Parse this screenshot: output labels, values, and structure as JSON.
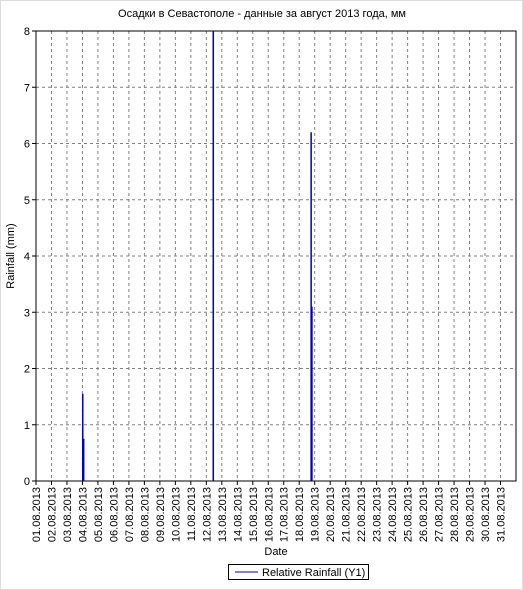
{
  "chart_data": {
    "type": "bar",
    "title": "Осадки в Севастополе - данные за август 2013 года, мм",
    "x_label": "Date",
    "y_label": "Rainfall (mm)",
    "xlim": [
      1,
      32
    ],
    "ylim": [
      0,
      8
    ],
    "yticks": [
      0,
      1,
      2,
      3,
      4,
      5,
      6,
      7,
      8
    ],
    "xticks": [
      {
        "value": 1,
        "label": "01.08.2013"
      },
      {
        "value": 2,
        "label": "02.08.2013"
      },
      {
        "value": 3,
        "label": "03.08.2013"
      },
      {
        "value": 4,
        "label": "04.08.2013"
      },
      {
        "value": 5,
        "label": "05.08.2013"
      },
      {
        "value": 6,
        "label": "06.08.2013"
      },
      {
        "value": 7,
        "label": "07.08.2013"
      },
      {
        "value": 8,
        "label": "08.08.2013"
      },
      {
        "value": 9,
        "label": "09.08.2013"
      },
      {
        "value": 10,
        "label": "10.08.2013"
      },
      {
        "value": 11,
        "label": "11.08.2013"
      },
      {
        "value": 12,
        "label": "12.08.2013"
      },
      {
        "value": 13,
        "label": "13.08.2013"
      },
      {
        "value": 14,
        "label": "14.08.2013"
      },
      {
        "value": 15,
        "label": "15.08.2013"
      },
      {
        "value": 16,
        "label": "16.08.2013"
      },
      {
        "value": 17,
        "label": "17.08.2013"
      },
      {
        "value": 18,
        "label": "18.08.2013"
      },
      {
        "value": 19,
        "label": "19.08.2013"
      },
      {
        "value": 20,
        "label": "20.08.2013"
      },
      {
        "value": 21,
        "label": "21.08.2013"
      },
      {
        "value": 22,
        "label": "22.08.2013"
      },
      {
        "value": 23,
        "label": "23.08.2013"
      },
      {
        "value": 24,
        "label": "24.08.2013"
      },
      {
        "value": 25,
        "label": "25.08.2013"
      },
      {
        "value": 26,
        "label": "26.08.2013"
      },
      {
        "value": 27,
        "label": "27.08.2013"
      },
      {
        "value": 28,
        "label": "28.08.2013"
      },
      {
        "value": 29,
        "label": "29.08.2013"
      },
      {
        "value": 30,
        "label": "30.08.2013"
      },
      {
        "value": 31,
        "label": "31.08.2013"
      }
    ],
    "grid": true,
    "legend": "bottom",
    "series": [
      {
        "name": "Relative Rainfall (Y1)",
        "color": "#0000c0",
        "x": [
          4.02,
          4.08,
          12.45,
          18.77,
          18.82
        ],
        "values": [
          1.55,
          0.75,
          8,
          6.2,
          3.1
        ]
      }
    ]
  }
}
